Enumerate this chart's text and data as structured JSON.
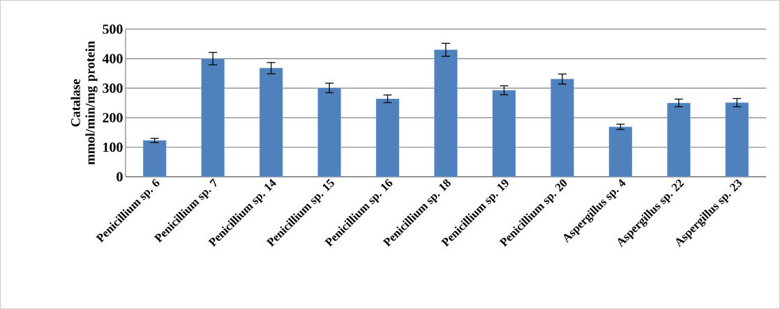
{
  "chart_data": {
    "type": "bar",
    "ylabel": "Catalase mmol/min/mg protein",
    "categories": [
      "Penicillium sp. 6",
      "Penicillium sp. 7",
      "Penicillium sp. 14",
      "Penicillium sp. 15",
      "Penicillium sp. 16",
      "Penicillium sp. 18",
      "Penicillium sp. 19",
      "Penicillium sp. 20",
      "Aspergillus sp. 4",
      "Aspergillus sp. 22",
      "Aspergillus sp. 23"
    ],
    "values": [
      123,
      400,
      368,
      301,
      264,
      430,
      293,
      331,
      169,
      250,
      251
    ],
    "errors": [
      7,
      21,
      19,
      16,
      13,
      22,
      15,
      17,
      9,
      13,
      14
    ],
    "color": "#4f81bd",
    "ylim": [
      0,
      500
    ],
    "yticks": [
      0,
      100,
      200,
      300,
      400,
      500
    ],
    "grid": "y"
  }
}
